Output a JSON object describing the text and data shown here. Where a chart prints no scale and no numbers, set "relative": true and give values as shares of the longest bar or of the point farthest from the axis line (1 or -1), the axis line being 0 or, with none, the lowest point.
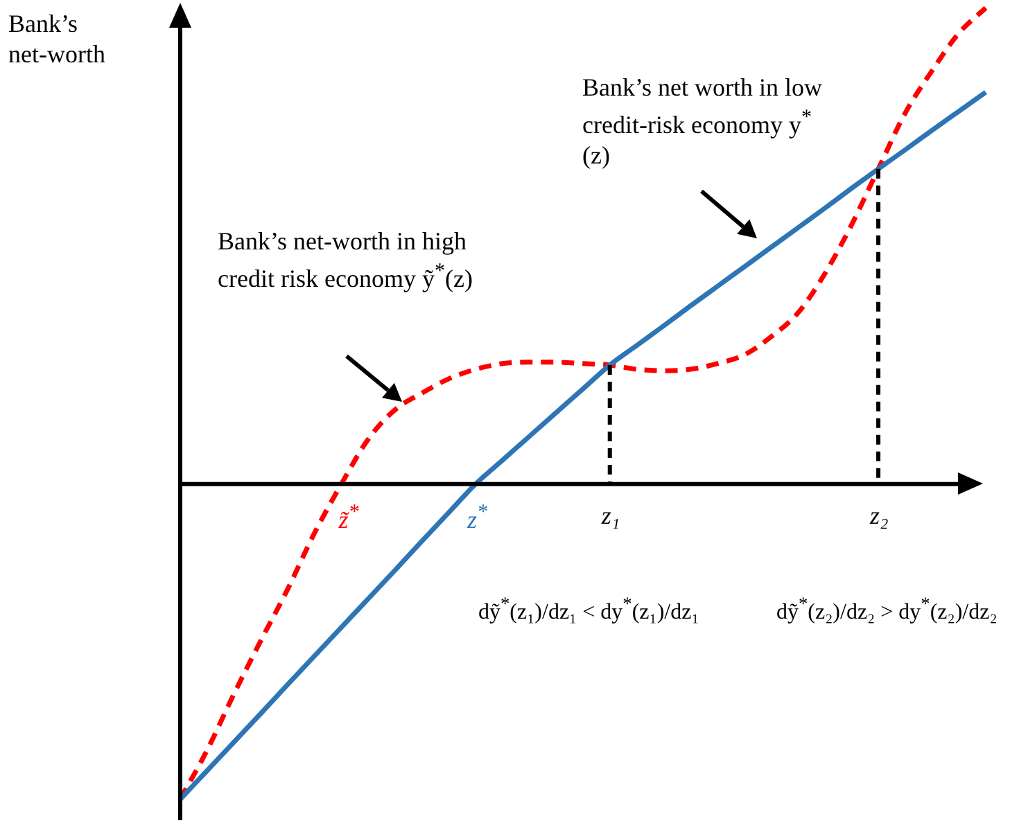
{
  "chart_data": {
    "type": "line",
    "relative": true,
    "ylabel": "Bank’s net-worth",
    "legend": false,
    "marker": "none",
    "categories": [
      null,
      null,
      null,
      null,
      null,
      null,
      null,
      null,
      null,
      null,
      null,
      null,
      null,
      null,
      null,
      null,
      null,
      null,
      null,
      null,
      null,
      null,
      null,
      null,
      null,
      null,
      null,
      null,
      null,
      null,
      null
    ],
    "series": [
      {
        "color": "#2e75b6",
        "line_style": "solid",
        "values": [
          -0.662,
          -0.602,
          -0.542,
          -0.482,
          -0.421,
          -0.361,
          -0.301,
          -0.241,
          -0.181,
          -0.12,
          -0.06,
          0,
          0.05,
          0.1,
          0.15,
          0.2,
          0.25,
          0.291,
          0.332,
          0.374,
          0.415,
          0.456,
          0.497,
          0.538,
          0.579,
          0.621,
          0.662,
          0.702,
          0.743,
          0.783,
          0.823
        ]
      },
      {
        "color": "#ff0000",
        "line_style": "dashed",
        "values": [
          -0.662,
          -0.559,
          -0.441,
          -0.329,
          -0.221,
          -0.103,
          0,
          0.094,
          0.156,
          0.191,
          0.221,
          0.241,
          0.253,
          0.256,
          0.256,
          0.253,
          0.25,
          0.241,
          0.238,
          0.241,
          0.253,
          0.271,
          0.309,
          0.359,
          0.441,
          0.544,
          0.662,
          0.779,
          0.868,
          0.947,
          1
        ]
      }
    ],
    "annotations": [
      "Bank’s net worth in low credit-risk economy y$^{*}$(z)",
      "Bank’s net-worth in high credit risk economy ỹ$^{*}$(z)",
      "z̃$^{*}$",
      "z$^{*}$",
      "z₁",
      "z₂",
      "dỹ$^{*}$(z₁)/dz₁ < dy$^{*}$(z₁)/dz₁",
      "dỹ$^{*}$(z₂)/dz₂ > dy$^{*}$(z₂)/dz₂"
    ]
  }
}
